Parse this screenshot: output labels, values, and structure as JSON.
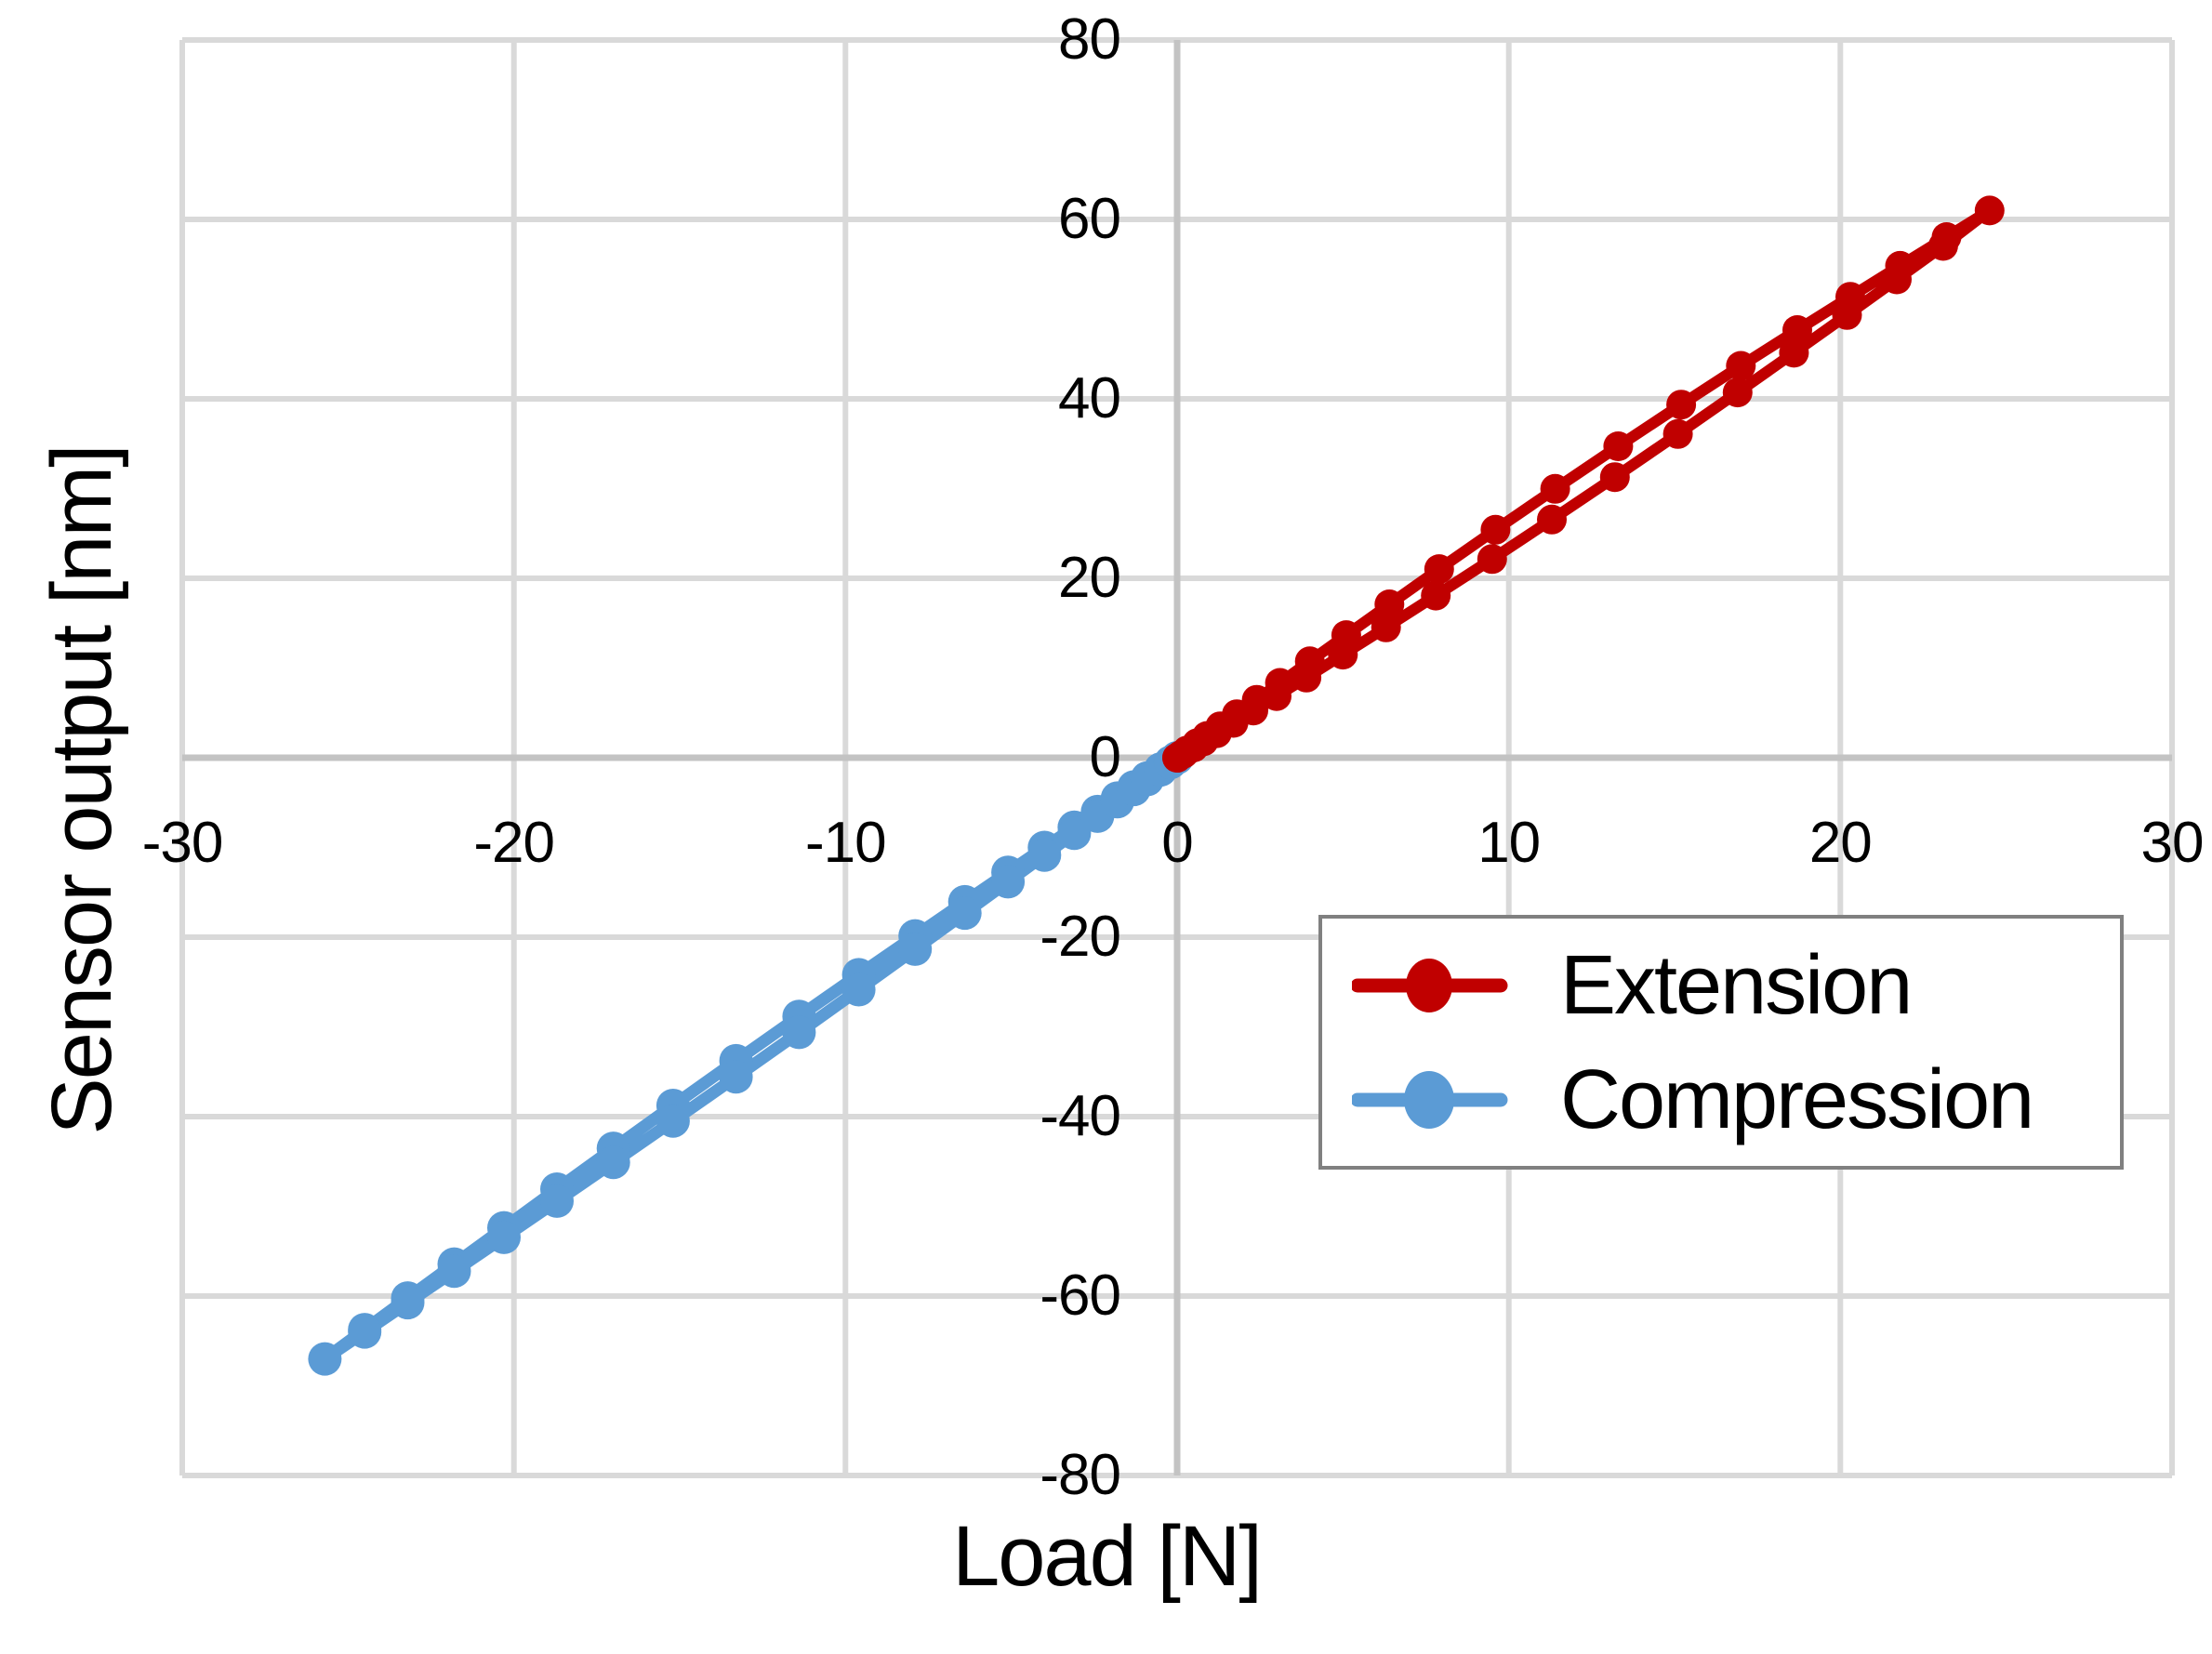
{
  "colors": {
    "extension": "#C00000",
    "compression": "#5B9BD5",
    "gridline": "#D9D9D9",
    "zero_axis": "#C3C3C3",
    "legend_border": "#808080",
    "text": "#000000",
    "background": "#FFFFFF"
  },
  "legend": {
    "items": [
      {
        "label": "Extension",
        "color": "#C00000"
      },
      {
        "label": "Compression",
        "color": "#5B9BD5"
      }
    ]
  },
  "chart_data": {
    "type": "line",
    "title": "",
    "xlabel": "Load [N]",
    "ylabel": "Sensor output [nm]",
    "xlim": [
      -30,
      30
    ],
    "ylim": [
      -80,
      80
    ],
    "x_ticks": [
      -30,
      -20,
      -10,
      0,
      10,
      20,
      30
    ],
    "y_ticks": [
      80,
      60,
      40,
      20,
      0,
      -20,
      -40,
      -60,
      -80
    ],
    "grid": "on",
    "legend_position": "lower-right",
    "series": [
      {
        "name": "Compression",
        "color": "#5B9BD5",
        "marker": "circle",
        "points": [
          [
            0,
            0
          ],
          [
            -0.2,
            -0.5
          ],
          [
            -0.5,
            -1.25
          ],
          [
            -0.9,
            -2.25
          ],
          [
            -1.3,
            -3.25
          ],
          [
            -1.8,
            -4.5
          ],
          [
            -2.4,
            -6.0
          ],
          [
            -3.1,
            -7.75
          ],
          [
            -4.0,
            -10.0
          ],
          [
            -5.1,
            -12.77
          ],
          [
            -6.4,
            -16.05
          ],
          [
            -7.9,
            -19.85
          ],
          [
            -9.6,
            -24.19
          ],
          [
            -11.4,
            -28.83
          ],
          [
            -13.3,
            -33.77
          ],
          [
            -15.2,
            -38.76
          ],
          [
            -17.0,
            -43.53
          ],
          [
            -18.7,
            -48.08
          ],
          [
            -20.3,
            -52.39
          ],
          [
            -21.8,
            -56.44
          ],
          [
            -23.2,
            -60.22
          ],
          [
            -24.5,
            -63.74
          ],
          [
            -25.7,
            -67.0
          ],
          [
            -24.5,
            -64.0
          ],
          [
            -23.2,
            -60.74
          ],
          [
            -21.8,
            -57.23
          ],
          [
            -20.3,
            -53.46
          ],
          [
            -18.7,
            -49.42
          ],
          [
            -17.0,
            -45.1
          ],
          [
            -15.2,
            -40.49
          ],
          [
            -13.3,
            -35.57
          ],
          [
            -11.4,
            -30.61
          ],
          [
            -9.6,
            -25.86
          ],
          [
            -7.9,
            -21.34
          ],
          [
            -6.4,
            -17.32
          ],
          [
            -5.1,
            -13.82
          ],
          [
            -4.0,
            -10.85
          ],
          [
            -3.1,
            -8.42
          ],
          [
            -2.4,
            -6.52
          ],
          [
            -1.8,
            -4.89
          ],
          [
            -1.3,
            -3.53
          ],
          [
            -0.9,
            -2.44
          ],
          [
            -0.5,
            -1.36
          ],
          [
            -0.2,
            -0.54
          ],
          [
            0,
            0
          ]
        ]
      },
      {
        "name": "Extension",
        "color": "#C00000",
        "marker": "circle",
        "points": [
          [
            0,
            0
          ],
          [
            0.2,
            0.46
          ],
          [
            0.5,
            1.14
          ],
          [
            0.8,
            1.83
          ],
          [
            1.2,
            2.74
          ],
          [
            1.7,
            3.89
          ],
          [
            2.3,
            5.26
          ],
          [
            3.0,
            6.87
          ],
          [
            3.9,
            8.93
          ],
          [
            5.0,
            11.49
          ],
          [
            6.3,
            14.53
          ],
          [
            7.8,
            18.07
          ],
          [
            9.5,
            22.15
          ],
          [
            11.3,
            26.55
          ],
          [
            13.2,
            31.27
          ],
          [
            15.1,
            36.08
          ],
          [
            16.9,
            40.71
          ],
          [
            18.6,
            45.14
          ],
          [
            20.2,
            49.35
          ],
          [
            21.7,
            53.32
          ],
          [
            23.1,
            57.05
          ],
          [
            24.5,
            61.0
          ],
          [
            23.2,
            58.03
          ],
          [
            21.8,
            54.83
          ],
          [
            20.3,
            51.38
          ],
          [
            18.7,
            47.67
          ],
          [
            17.0,
            43.68
          ],
          [
            15.2,
            39.36
          ],
          [
            13.3,
            34.71
          ],
          [
            11.4,
            29.97
          ],
          [
            9.6,
            25.41
          ],
          [
            7.9,
            21.03
          ],
          [
            6.4,
            17.1
          ],
          [
            5.1,
            13.67
          ],
          [
            4.0,
            10.75
          ],
          [
            3.1,
            8.34
          ],
          [
            2.4,
            6.46
          ],
          [
            1.8,
            4.85
          ],
          [
            1.3,
            3.5
          ],
          [
            0.9,
            2.43
          ],
          [
            0.6,
            1.62
          ],
          [
            0.3,
            0.81
          ],
          [
            0.1,
            0.27
          ],
          [
            0,
            0
          ]
        ]
      }
    ]
  }
}
